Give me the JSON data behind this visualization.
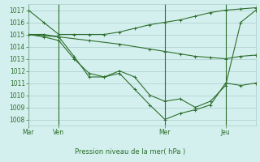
{
  "background_color": "#d4f0ee",
  "grid_color": "#aacccc",
  "line_color": "#2d6e2d",
  "ylabel": "Pression niveau de la mer( hPa )",
  "ylim": [
    1007.5,
    1017.5
  ],
  "yticks": [
    1008,
    1009,
    1010,
    1011,
    1012,
    1013,
    1014,
    1015,
    1016,
    1017
  ],
  "day_labels": [
    "Mar",
    "Ven",
    "Mer",
    "Jeu"
  ],
  "day_positions": [
    0,
    2,
    9,
    13
  ],
  "series": [
    {
      "x": [
        0,
        1,
        2,
        3,
        4,
        5,
        6,
        7,
        8,
        9,
        10,
        11,
        12,
        13,
        14,
        15
      ],
      "y": [
        1017,
        1016,
        1015,
        1015,
        1015,
        1015,
        1015.2,
        1015.5,
        1015.8,
        1016,
        1016.2,
        1016.5,
        1016.8,
        1017,
        1017.1,
        1017.2
      ]
    },
    {
      "x": [
        0,
        2,
        4,
        6,
        8,
        9,
        10,
        11,
        12,
        13,
        14,
        15
      ],
      "y": [
        1015,
        1014.8,
        1014.5,
        1014.2,
        1013.8,
        1013.6,
        1013.4,
        1013.2,
        1013.1,
        1013,
        1013.2,
        1013.3
      ]
    },
    {
      "x": [
        0,
        1,
        2,
        3,
        4,
        5,
        6,
        7,
        8,
        9,
        10,
        11,
        12,
        13,
        14,
        15
      ],
      "y": [
        1015,
        1015,
        1014.8,
        1013.2,
        1011.5,
        1011.5,
        1011.8,
        1010.5,
        1009.2,
        1008.0,
        1008.5,
        1008.8,
        1009.2,
        1011.0,
        1010.8,
        1011.0
      ]
    },
    {
      "x": [
        0,
        1,
        2,
        3,
        4,
        5,
        6,
        7,
        8,
        9,
        10,
        11,
        12,
        13,
        14,
        15
      ],
      "y": [
        1015,
        1014.8,
        1014.5,
        1013,
        1011.8,
        1011.5,
        1012,
        1011.5,
        1010,
        1009.5,
        1009.7,
        1009.0,
        1009.5,
        1010.8,
        1016.0,
        1017.0
      ]
    }
  ]
}
